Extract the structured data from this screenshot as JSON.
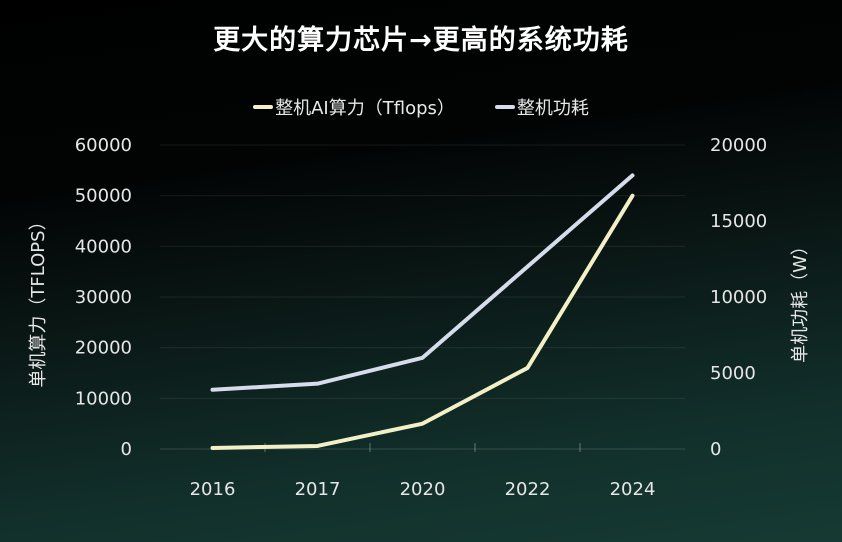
{
  "chart_data": {
    "type": "line",
    "title": "更大的算力芯片→更高的系统功耗",
    "categories": [
      "2016",
      "2017",
      "2020",
      "2022",
      "2024"
    ],
    "ylabel_left": "单机算力（TFLOPS）",
    "ylabel_right": "单机功耗（W）",
    "ylim_left": [
      0,
      60000
    ],
    "ylim_right": [
      0,
      20000
    ],
    "yticks_left": [
      "0",
      "10000",
      "20000",
      "30000",
      "40000",
      "50000",
      "60000"
    ],
    "yticks_right": [
      "0",
      "5000",
      "10000",
      "15000",
      "20000"
    ],
    "grid": true,
    "legend_position": "top",
    "series": [
      {
        "name": "整机AI算力（Tflops）",
        "axis": "left",
        "color": "#f3f0c8",
        "values": [
          200,
          600,
          5000,
          16000,
          50000
        ]
      },
      {
        "name": "整机功耗",
        "axis": "right",
        "color": "#d6dcec",
        "values": [
          3900,
          4300,
          6000,
          12000,
          18000
        ]
      }
    ]
  }
}
